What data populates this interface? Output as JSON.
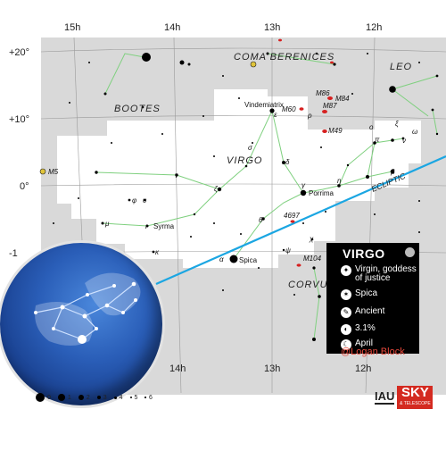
{
  "map": {
    "ra_labels": {
      "h15_top": "15h",
      "h14_top": "14h",
      "h13_top": "13h",
      "h12_top": "12h",
      "h14_bot": "14h",
      "h13_bot": "13h",
      "h12_bot": "12h"
    },
    "dec_labels": {
      "p20": "+20°",
      "p10": "+10°",
      "z0": "0°",
      "m10": "-1"
    },
    "constellations": {
      "coma": "COMA BERENICES",
      "leo": "LEO",
      "bootes": "BOOTES",
      "virgo": "VIRGO",
      "corvus": "CORVU"
    },
    "ecliptic_label": "ECLIPTIC",
    "star_names": {
      "vindemiatrix": "Vindemiatrix",
      "porrima": "Porrima",
      "syrma": "Syrma",
      "spica": "Spica"
    },
    "greek": {
      "epsilon": "ε",
      "sigma": "σ",
      "delta": "δ",
      "gamma": "γ",
      "eta": "η",
      "theta": "θ",
      "zeta": "ζ",
      "tau": "τ",
      "phi": "φ",
      "upsilon": "υ",
      "iota": "ι",
      "mu": "μ",
      "kappa": "κ",
      "alpha": "α",
      "psi": "ψ",
      "chi": "χ",
      "omicron": "ο",
      "pi": "π",
      "nu": "ν",
      "beta": "β",
      "xi": "ξ",
      "omega": "ω",
      "rho": "ρ"
    },
    "dso": {
      "m5": "M5",
      "m86": "M86",
      "m84": "M84",
      "m60": "M60",
      "m87": "M87",
      "m49": "M49",
      "ngc4697": "4697",
      "m104": "M104"
    },
    "colors": {
      "area_gray": "#d9d9d9",
      "virgo_white": "#ffffff",
      "lines": "#7fd07f",
      "ecliptic": "#1ba6e2",
      "galaxy": "#d62020"
    }
  },
  "infobox": {
    "title": "VIRGO",
    "rows": [
      {
        "icon": "meaning-icon",
        "text": "Virgin, goddess of justice"
      },
      {
        "icon": "brightest-star-icon",
        "text": "Spica"
      },
      {
        "icon": "origin-icon",
        "text": "Ancient"
      },
      {
        "icon": "sky-area-icon",
        "text": "3.1%"
      },
      {
        "icon": "best-month-icon",
        "text": "April"
      }
    ],
    "watermark": "@Logan Block"
  },
  "magnitude_legend": [
    "0",
    "1",
    "2",
    "3",
    "4",
    "5",
    "6"
  ],
  "logos": {
    "iau": "IAU",
    "sky_telescope_top": "SKY",
    "sky_telescope_bottom": "& TELESCOPE"
  }
}
